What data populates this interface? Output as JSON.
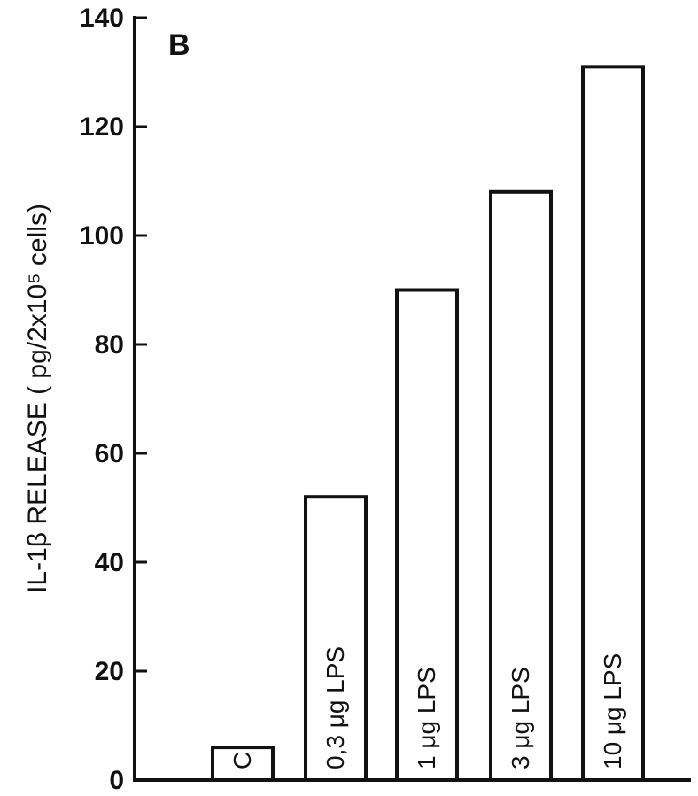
{
  "chart_data": {
    "type": "bar",
    "panel_label": "B",
    "ylabel": "IL-1β  RELEASE  ( pg/2x10⁵ cells)",
    "categories": [
      "C",
      "0,3 μg LPS",
      "1 μg LPS",
      "3 μg LPS",
      "10 μg LPS"
    ],
    "values": [
      6,
      52,
      90,
      108,
      131
    ],
    "ylim": [
      0,
      140
    ],
    "yticks": [
      0,
      20,
      40,
      60,
      80,
      100,
      120,
      140
    ],
    "bar_label_position": "inside-bar-rotated",
    "bar_fill": "#ffffff",
    "bar_stroke": "#111111",
    "grid": false
  }
}
